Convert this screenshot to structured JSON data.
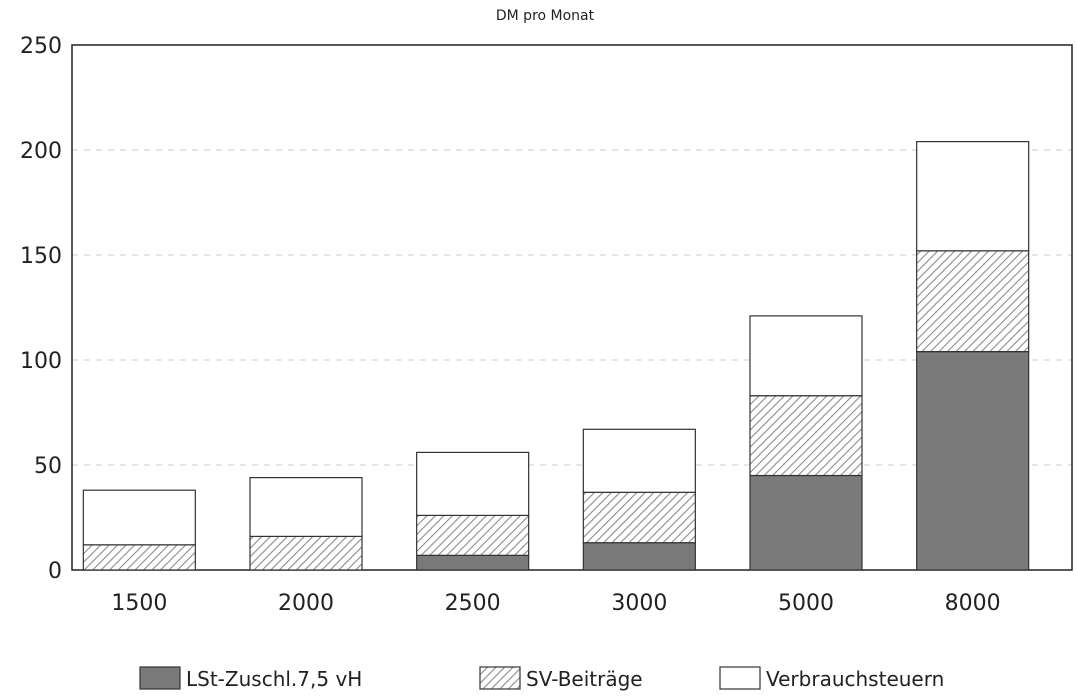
{
  "chart_data": {
    "type": "stacked_bar",
    "title": "DM pro Monat",
    "categories": [
      "1500",
      "2000",
      "2500",
      "3000",
      "5000",
      "8000"
    ],
    "series": [
      {
        "name": "LSt-Zuschl.7,5 vH",
        "color": "#7a7a7a",
        "fill": "solid",
        "values": [
          0,
          0,
          7,
          13,
          45,
          104
        ]
      },
      {
        "name": "SV-Beiträge",
        "color": "#8c8c8c",
        "fill": "hatch",
        "values": [
          12,
          16,
          19,
          24,
          38,
          48
        ]
      },
      {
        "name": "Verbrauchsteuern",
        "color": "#ffffff",
        "fill": "solid",
        "values": [
          26,
          28,
          30,
          30,
          38,
          52
        ]
      }
    ],
    "ylim": [
      0,
      250
    ],
    "yticks": [
      0,
      50,
      100,
      150,
      200,
      250
    ],
    "grid": true
  }
}
